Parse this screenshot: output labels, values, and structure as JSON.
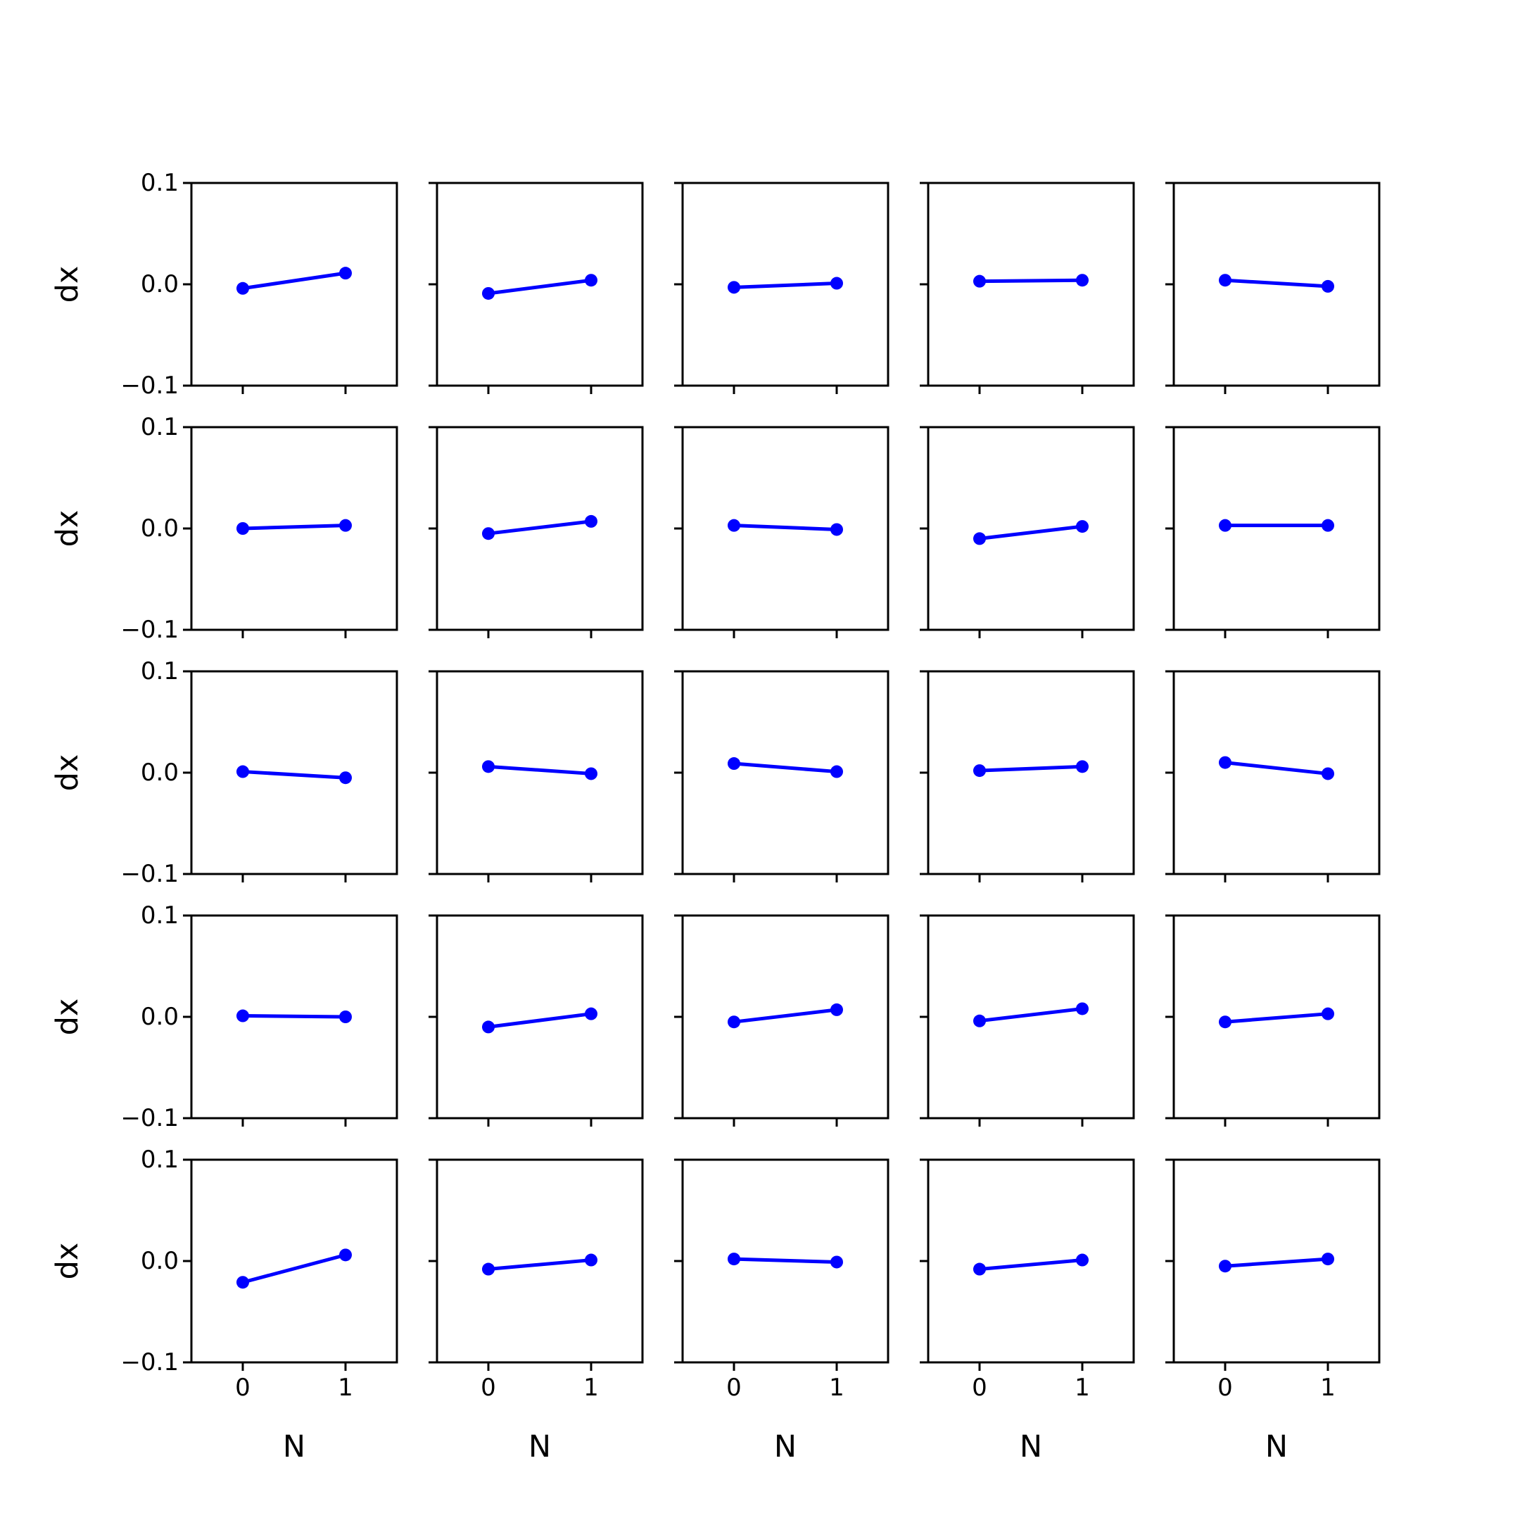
{
  "chart_data": {
    "type": "line",
    "layout": {
      "rows": 5,
      "cols": 5
    },
    "line_color": "#0000ff",
    "axis_color": "#000000",
    "background": "#ffffff",
    "xlabel": "N",
    "ylabel": "dx",
    "xlim": [
      -0.5,
      1.5
    ],
    "ylim": [
      -0.1,
      0.1
    ],
    "xticks": [
      0,
      1
    ],
    "xtick_labels": [
      "0",
      "1"
    ],
    "yticks": [
      -0.1,
      0.0,
      0.1
    ],
    "ytick_labels": [
      "−0.1",
      "0.0",
      "0.1"
    ],
    "grid": false,
    "legend": false,
    "x": [
      0,
      1
    ],
    "panels": [
      [
        -0.004,
        0.011
      ],
      [
        -0.009,
        0.004
      ],
      [
        -0.003,
        0.001
      ],
      [
        0.003,
        0.004
      ],
      [
        0.004,
        -0.002
      ],
      [
        0.0,
        0.003
      ],
      [
        -0.005,
        0.007
      ],
      [
        0.003,
        -0.001
      ],
      [
        -0.01,
        0.002
      ],
      [
        0.003,
        0.003
      ],
      [
        0.001,
        -0.005
      ],
      [
        0.006,
        -0.001
      ],
      [
        0.009,
        0.001
      ],
      [
        0.002,
        0.006
      ],
      [
        0.01,
        -0.001
      ],
      [
        0.001,
        0.0
      ],
      [
        -0.01,
        0.003
      ],
      [
        -0.005,
        0.007
      ],
      [
        -0.004,
        0.008
      ],
      [
        -0.005,
        0.003
      ],
      [
        -0.021,
        0.006
      ],
      [
        -0.008,
        0.001
      ],
      [
        0.002,
        -0.001
      ],
      [
        -0.008,
        0.001
      ],
      [
        -0.005,
        0.002
      ]
    ]
  }
}
